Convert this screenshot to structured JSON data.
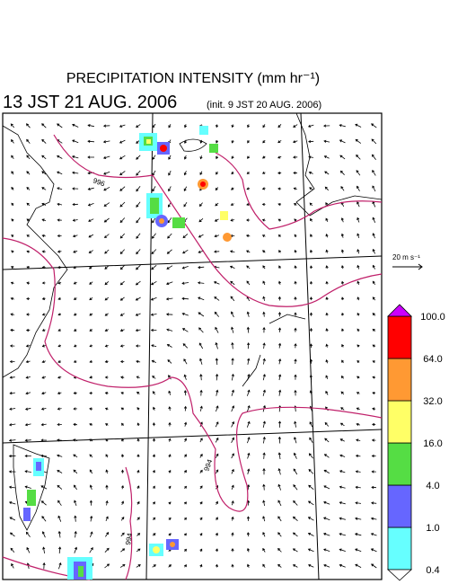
{
  "header": {
    "title": "PRECIPITATION INTENSITY (mm hr⁻¹)",
    "valid_time": "13 JST 21 AUG. 2006",
    "init_time": "(init. 9 JST 20 AUG. 2006)"
  },
  "wind_reference": {
    "label": "20 m s⁻¹"
  },
  "contour_labels": [
    "996",
    "994",
    "994"
  ],
  "colorbar": {
    "levels": [
      {
        "value": 0.4,
        "label": "0.4"
      },
      {
        "value": 1,
        "label": "1.0"
      },
      {
        "value": 4,
        "label": "4.0"
      },
      {
        "value": 16,
        "label": "16.0"
      },
      {
        "value": 32,
        "label": "32.0"
      },
      {
        "value": 64,
        "label": "64.0"
      },
      {
        "value": 100,
        "label": "100.0"
      }
    ],
    "colors": [
      "#66ffff",
      "#6666ff",
      "#55dd44",
      "#ffff66",
      "#ff9933",
      "#ff0000"
    ],
    "over_color": "#cc00ff",
    "under_color": "#ffffff"
  }
}
